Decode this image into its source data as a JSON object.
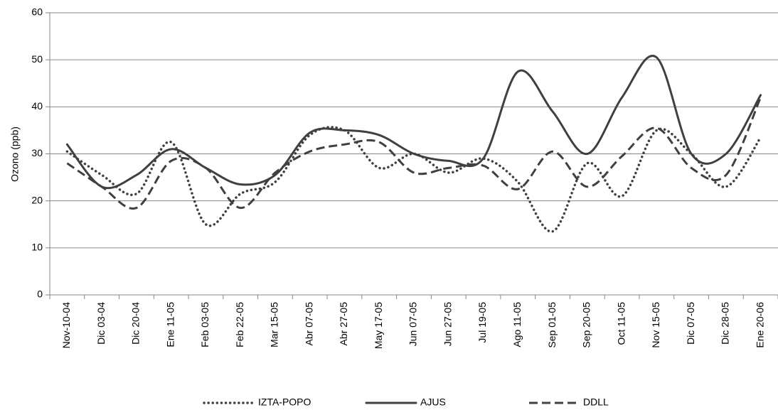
{
  "chart_data": {
    "type": "line",
    "title": "",
    "xlabel": "",
    "ylabel": "Ozono (ppb)",
    "ylim": [
      0,
      60
    ],
    "yticks": [
      "0",
      "10",
      "20",
      "30",
      "40",
      "50",
      "60"
    ],
    "grid": true,
    "legend_position": "bottom",
    "categories": [
      "Nov-10-04",
      "Dic 03-04",
      "Dic 20-04",
      "Ene 11-05",
      "Feb 03-05",
      "Feb 22-05",
      "Mar 15-05",
      "Abr 07-05",
      "Abr 27-05",
      "May 17-05",
      "Jun 07-05",
      "Jun 27-05",
      "Jul 19-05",
      "Ago 11-05",
      "Sep 01-05",
      "Sep 20-05",
      "Oct 11-05",
      "Nov 15-05",
      "Dic 07-05",
      "Dic 28-05",
      "Ene 20-06"
    ],
    "series": [
      {
        "name": "IZTA-POPO",
        "style": "dotted",
        "color": "#404040",
        "values": [
          30.5,
          25.5,
          21.5,
          32.5,
          15,
          21.5,
          24,
          34,
          35,
          27,
          30,
          26,
          29,
          24,
          13.5,
          28,
          21,
          35,
          30,
          23,
          33.5
        ]
      },
      {
        "name": "AJUS",
        "style": "solid",
        "color": "#404040",
        "values": [
          32,
          23,
          25.5,
          31,
          27,
          23.5,
          25.5,
          34.5,
          35,
          34,
          30,
          28.5,
          29,
          47.5,
          39,
          30,
          42,
          50.5,
          30,
          30,
          42.5
        ]
      },
      {
        "name": "DDLL",
        "style": "dashed",
        "color": "#404040",
        "values": [
          28,
          23,
          18.5,
          28.5,
          27,
          18.5,
          26,
          30.5,
          32,
          32.5,
          26,
          27,
          27.5,
          22.5,
          30.5,
          23,
          29.5,
          35.5,
          27,
          25.5,
          42
        ]
      }
    ]
  }
}
